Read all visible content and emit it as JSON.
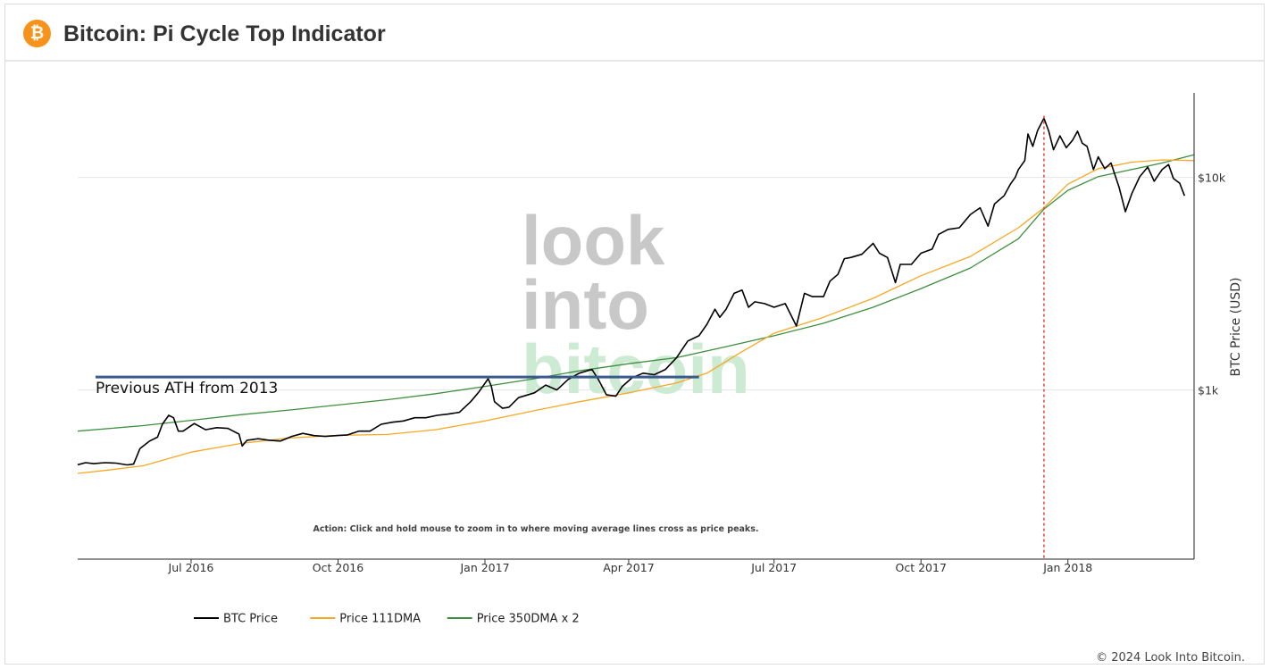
{
  "header": {
    "title": "Bitcoin: Pi Cycle Top Indicator",
    "logo_glyph": "₿",
    "logo_color": "#f7931a"
  },
  "watermark": {
    "line1": "look",
    "line2": "into",
    "line3": "bitcoin"
  },
  "footer": {
    "copyright": "© 2024 Look Into Bitcoin."
  },
  "chart_data": {
    "type": "line",
    "title": "Bitcoin: Pi Cycle Top Indicator",
    "ylabel": "BTC Price (USD)",
    "y_scale": "log",
    "ylim": [
      160,
      25000
    ],
    "xlim": [
      "2016-04-21",
      "2018-03-21"
    ],
    "x_ticks": [
      {
        "date": "2016-07-01",
        "label": "Jul 2016"
      },
      {
        "date": "2016-10-01",
        "label": "Oct 2016"
      },
      {
        "date": "2017-01-01",
        "label": "Jan 2017"
      },
      {
        "date": "2017-04-01",
        "label": "Apr 2017"
      },
      {
        "date": "2017-07-01",
        "label": "Jul 2017"
      },
      {
        "date": "2017-10-01",
        "label": "Oct 2017"
      },
      {
        "date": "2018-01-01",
        "label": "Jan 2018"
      }
    ],
    "y_ticks": [
      {
        "value": 1000,
        "label": "$1k"
      },
      {
        "value": 10000,
        "label": "$10k"
      }
    ],
    "grid": true,
    "legend_position": "bottom-left",
    "action_note": "Action: Click and hold mouse to zoom in to where moving average lines cross as price peaks.",
    "annotations": [
      {
        "text": "Previous ATH from 2013",
        "value": 1150,
        "x_start": "2016-04-21",
        "x_end": "2017-05-15",
        "color": "#3a5a8c"
      }
    ],
    "cross_marker": {
      "date": "2017-12-17",
      "color": "#e0453a"
    },
    "series": [
      {
        "name": "BTC Price",
        "color": "#000000",
        "points": [
          [
            "2016-04-21",
            445
          ],
          [
            "2016-04-26",
            455
          ],
          [
            "2016-05-01",
            450
          ],
          [
            "2016-05-08",
            455
          ],
          [
            "2016-05-15",
            453
          ],
          [
            "2016-05-22",
            444
          ],
          [
            "2016-05-26",
            448
          ],
          [
            "2016-05-30",
            530
          ],
          [
            "2016-06-05",
            575
          ],
          [
            "2016-06-10",
            600
          ],
          [
            "2016-06-13",
            690
          ],
          [
            "2016-06-17",
            760
          ],
          [
            "2016-06-20",
            740
          ],
          [
            "2016-06-23",
            640
          ],
          [
            "2016-06-26",
            640
          ],
          [
            "2016-07-03",
            695
          ],
          [
            "2016-07-10",
            650
          ],
          [
            "2016-07-17",
            665
          ],
          [
            "2016-07-24",
            660
          ],
          [
            "2016-07-31",
            620
          ],
          [
            "2016-08-02",
            545
          ],
          [
            "2016-08-05",
            580
          ],
          [
            "2016-08-12",
            590
          ],
          [
            "2016-08-19",
            580
          ],
          [
            "2016-08-26",
            575
          ],
          [
            "2016-09-02",
            605
          ],
          [
            "2016-09-09",
            625
          ],
          [
            "2016-09-16",
            610
          ],
          [
            "2016-09-23",
            605
          ],
          [
            "2016-09-30",
            610
          ],
          [
            "2016-10-07",
            615
          ],
          [
            "2016-10-14",
            640
          ],
          [
            "2016-10-21",
            640
          ],
          [
            "2016-10-28",
            690
          ],
          [
            "2016-11-04",
            705
          ],
          [
            "2016-11-11",
            715
          ],
          [
            "2016-11-18",
            740
          ],
          [
            "2016-11-25",
            740
          ],
          [
            "2016-12-02",
            760
          ],
          [
            "2016-12-09",
            770
          ],
          [
            "2016-12-16",
            785
          ],
          [
            "2016-12-23",
            880
          ],
          [
            "2016-12-28",
            975
          ],
          [
            "2017-01-03",
            1130
          ],
          [
            "2017-01-05",
            1040
          ],
          [
            "2017-01-07",
            880
          ],
          [
            "2017-01-12",
            820
          ],
          [
            "2017-01-16",
            830
          ],
          [
            "2017-01-22",
            920
          ],
          [
            "2017-02-01",
            970
          ],
          [
            "2017-02-08",
            1055
          ],
          [
            "2017-02-15",
            1000
          ],
          [
            "2017-02-22",
            1120
          ],
          [
            "2017-03-01",
            1200
          ],
          [
            "2017-03-09",
            1250
          ],
          [
            "2017-03-13",
            1120
          ],
          [
            "2017-03-18",
            950
          ],
          [
            "2017-03-24",
            935
          ],
          [
            "2017-03-28",
            1040
          ],
          [
            "2017-04-03",
            1140
          ],
          [
            "2017-04-10",
            1200
          ],
          [
            "2017-04-17",
            1180
          ],
          [
            "2017-04-24",
            1250
          ],
          [
            "2017-05-01",
            1420
          ],
          [
            "2017-05-08",
            1700
          ],
          [
            "2017-05-15",
            1800
          ],
          [
            "2017-05-20",
            2040
          ],
          [
            "2017-05-25",
            2400
          ],
          [
            "2017-05-28",
            2200
          ],
          [
            "2017-06-01",
            2400
          ],
          [
            "2017-06-06",
            2850
          ],
          [
            "2017-06-11",
            2950
          ],
          [
            "2017-06-15",
            2450
          ],
          [
            "2017-06-19",
            2600
          ],
          [
            "2017-06-25",
            2550
          ],
          [
            "2017-07-01",
            2450
          ],
          [
            "2017-07-08",
            2550
          ],
          [
            "2017-07-15",
            2000
          ],
          [
            "2017-07-20",
            2850
          ],
          [
            "2017-07-25",
            2750
          ],
          [
            "2017-08-01",
            2750
          ],
          [
            "2017-08-05",
            3250
          ],
          [
            "2017-08-10",
            3500
          ],
          [
            "2017-08-14",
            4150
          ],
          [
            "2017-08-18",
            4200
          ],
          [
            "2017-08-25",
            4350
          ],
          [
            "2017-09-01",
            4900
          ],
          [
            "2017-09-05",
            4400
          ],
          [
            "2017-09-10",
            4200
          ],
          [
            "2017-09-15",
            3200
          ],
          [
            "2017-09-18",
            3900
          ],
          [
            "2017-09-25",
            3900
          ],
          [
            "2017-10-01",
            4400
          ],
          [
            "2017-10-08",
            4600
          ],
          [
            "2017-10-12",
            5400
          ],
          [
            "2017-10-18",
            5700
          ],
          [
            "2017-10-25",
            5800
          ],
          [
            "2017-11-01",
            6700
          ],
          [
            "2017-11-07",
            7200
          ],
          [
            "2017-11-12",
            5900
          ],
          [
            "2017-11-16",
            7500
          ],
          [
            "2017-11-22",
            8200
          ],
          [
            "2017-11-26",
            9300
          ],
          [
            "2017-11-29",
            10000
          ],
          [
            "2017-12-01",
            10900
          ],
          [
            "2017-12-05",
            12000
          ],
          [
            "2017-12-07",
            16000
          ],
          [
            "2017-12-10",
            14000
          ],
          [
            "2017-12-13",
            16600
          ],
          [
            "2017-12-17",
            19000
          ],
          [
            "2017-12-20",
            16500
          ],
          [
            "2017-12-23",
            13500
          ],
          [
            "2017-12-27",
            15700
          ],
          [
            "2017-12-31",
            13800
          ],
          [
            "2018-01-04",
            15000
          ],
          [
            "2018-01-07",
            16500
          ],
          [
            "2018-01-10",
            14500
          ],
          [
            "2018-01-13",
            14000
          ],
          [
            "2018-01-17",
            10900
          ],
          [
            "2018-01-20",
            12500
          ],
          [
            "2018-01-24",
            11000
          ],
          [
            "2018-01-28",
            11700
          ],
          [
            "2018-02-02",
            9000
          ],
          [
            "2018-02-06",
            6900
          ],
          [
            "2018-02-10",
            8400
          ],
          [
            "2018-02-15",
            10100
          ],
          [
            "2018-02-20",
            11200
          ],
          [
            "2018-02-24",
            9600
          ],
          [
            "2018-03-01",
            10900
          ],
          [
            "2018-03-05",
            11500
          ],
          [
            "2018-03-08",
            9900
          ],
          [
            "2018-03-12",
            9400
          ],
          [
            "2018-03-15",
            8200
          ]
        ]
      },
      {
        "name": "Price 111DMA",
        "color": "#f7a823",
        "points": [
          [
            "2016-04-21",
            405
          ],
          [
            "2016-05-10",
            420
          ],
          [
            "2016-06-01",
            440
          ],
          [
            "2016-07-01",
            510
          ],
          [
            "2016-08-01",
            560
          ],
          [
            "2016-09-01",
            595
          ],
          [
            "2016-10-01",
            612
          ],
          [
            "2016-11-01",
            618
          ],
          [
            "2016-12-01",
            650
          ],
          [
            "2017-01-01",
            715
          ],
          [
            "2017-02-01",
            800
          ],
          [
            "2017-03-01",
            880
          ],
          [
            "2017-04-01",
            970
          ],
          [
            "2017-05-01",
            1080
          ],
          [
            "2017-05-20",
            1200
          ],
          [
            "2017-06-10",
            1500
          ],
          [
            "2017-07-01",
            1850
          ],
          [
            "2017-08-01",
            2200
          ],
          [
            "2017-09-01",
            2700
          ],
          [
            "2017-10-01",
            3450
          ],
          [
            "2017-11-01",
            4250
          ],
          [
            "2017-12-01",
            5800
          ],
          [
            "2017-12-17",
            7200
          ],
          [
            "2018-01-01",
            9300
          ],
          [
            "2018-01-20",
            11000
          ],
          [
            "2018-02-10",
            11800
          ],
          [
            "2018-03-01",
            12100
          ],
          [
            "2018-03-21",
            12000
          ]
        ]
      },
      {
        "name": "Price 350DMA x 2",
        "color": "#3d8f3d",
        "points": [
          [
            "2016-04-21",
            640
          ],
          [
            "2016-06-01",
            680
          ],
          [
            "2016-07-01",
            720
          ],
          [
            "2016-08-01",
            765
          ],
          [
            "2016-09-01",
            805
          ],
          [
            "2016-10-01",
            850
          ],
          [
            "2016-11-01",
            900
          ],
          [
            "2016-12-01",
            960
          ],
          [
            "2017-01-01",
            1040
          ],
          [
            "2017-02-01",
            1130
          ],
          [
            "2017-03-01",
            1230
          ],
          [
            "2017-04-01",
            1330
          ],
          [
            "2017-05-01",
            1420
          ],
          [
            "2017-06-01",
            1600
          ],
          [
            "2017-07-01",
            1800
          ],
          [
            "2017-08-01",
            2060
          ],
          [
            "2017-09-01",
            2450
          ],
          [
            "2017-10-01",
            3000
          ],
          [
            "2017-11-01",
            3750
          ],
          [
            "2017-12-01",
            5150
          ],
          [
            "2017-12-17",
            7100
          ],
          [
            "2018-01-01",
            8700
          ],
          [
            "2018-01-20",
            10100
          ],
          [
            "2018-02-10",
            10900
          ],
          [
            "2018-03-01",
            11700
          ],
          [
            "2018-03-21",
            12800
          ]
        ]
      }
    ]
  }
}
